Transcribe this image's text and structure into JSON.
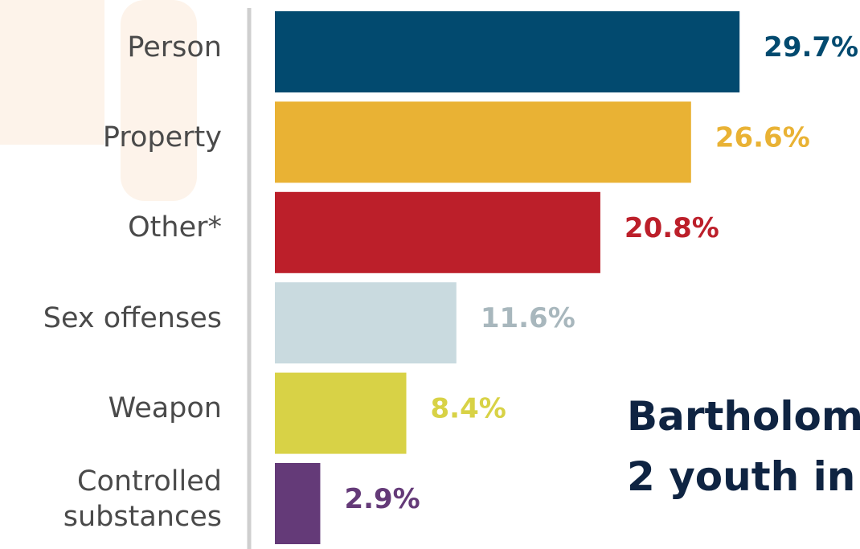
{
  "chart_data": {
    "type": "bar",
    "orientation": "horizontal",
    "categories": [
      "Person",
      "Property",
      "Other*",
      "Sex offenses",
      "Weapon",
      "Controlled substances"
    ],
    "values": [
      29.7,
      26.6,
      20.8,
      11.6,
      8.4,
      2.9
    ],
    "value_labels": [
      "29.7%",
      "26.6%",
      "20.8%",
      "11.6%",
      "8.4%",
      "2.9%"
    ],
    "colors": [
      "#024a6f",
      "#e9b234",
      "#bc1f2a",
      "#c9dadf",
      "#d8d246",
      "#643a78"
    ],
    "label_colors": [
      "#024a6f",
      "#e9b234",
      "#bc1f2a",
      "#a8b7bd",
      "#d8d246",
      "#643a78"
    ],
    "xlim": [
      0,
      30
    ],
    "annotations": [
      "Bartholom",
      "2 youth in"
    ]
  }
}
